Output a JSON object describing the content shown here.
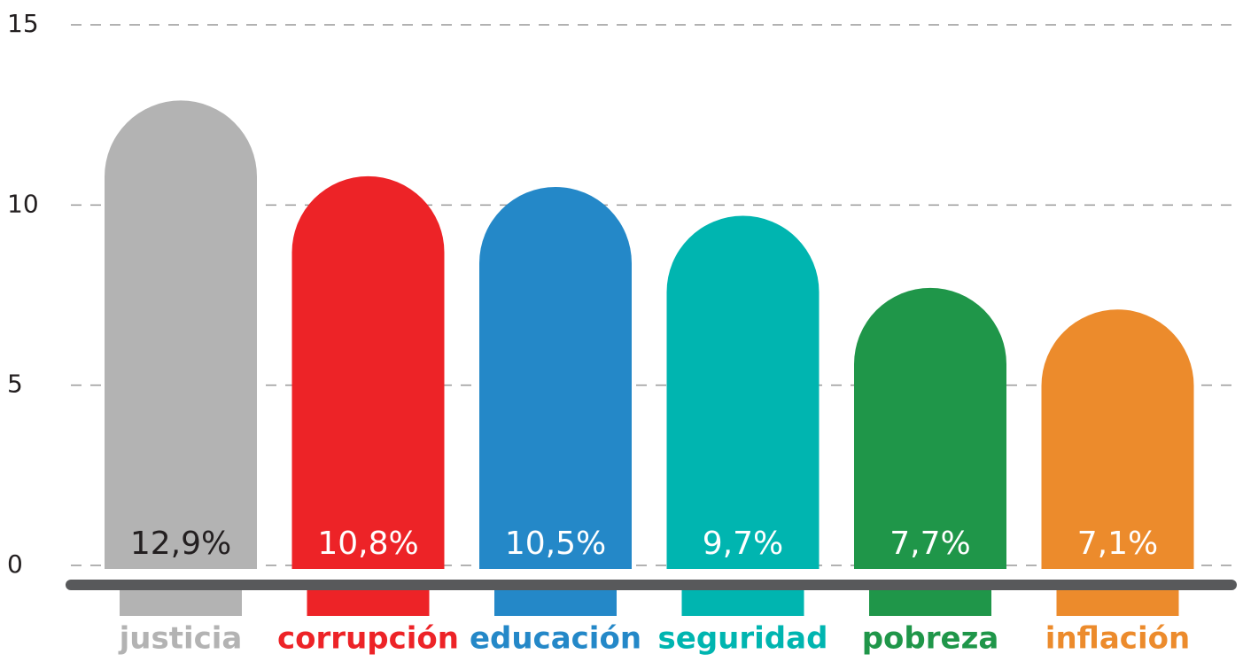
{
  "chart_data": {
    "type": "bar",
    "categories": [
      "justicia",
      "corrupción",
      "educación",
      "seguridad",
      "pobreza",
      "inflación"
    ],
    "values": [
      12.9,
      10.8,
      10.5,
      9.7,
      7.7,
      7.1
    ],
    "value_labels": [
      "12,9%",
      "10,8%",
      "10,5%",
      "9,7%",
      "7,7%",
      "7,1%"
    ],
    "colors": [
      "#b3b3b3",
      "#ed2327",
      "#2488c8",
      "#00b5b0",
      "#1f9649",
      "#ec8b2c"
    ],
    "value_label_colors": [
      "#231f20",
      "#ffffff",
      "#ffffff",
      "#ffffff",
      "#ffffff",
      "#ffffff"
    ],
    "ylim": [
      0,
      15
    ],
    "yticks": [
      0,
      5,
      10,
      15
    ],
    "grid": true
  }
}
